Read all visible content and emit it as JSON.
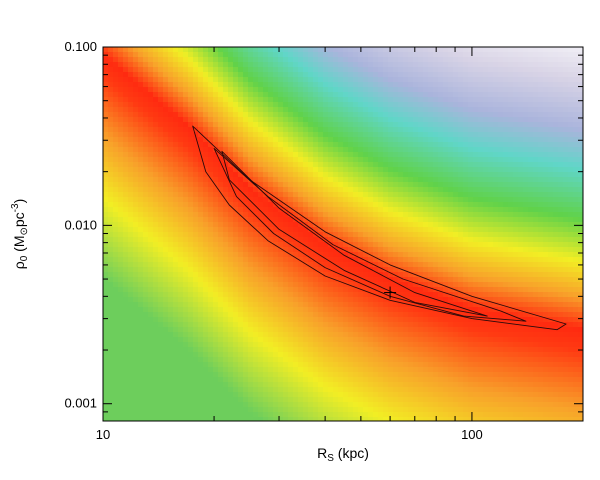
{
  "chart_data": {
    "type": "heatmap",
    "title": "",
    "xlabel": {
      "main": "R",
      "sub": "S",
      "rest": " (kpc)"
    },
    "ylabel": {
      "main": "ρ",
      "sub": "0",
      "open": " (M",
      "sun_sub": "⊙",
      "mid": "pc",
      "sup": "-3",
      "close": ")"
    },
    "x_scale": "log",
    "y_scale": "log",
    "xlim": [
      10,
      200
    ],
    "ylim": [
      0.0008,
      0.1
    ],
    "x_ticks": [
      {
        "value": 10,
        "label": "10"
      },
      {
        "value": 100,
        "label": "100"
      }
    ],
    "y_ticks": [
      {
        "value": 0.001,
        "label": "0.001"
      },
      {
        "value": 0.01,
        "label": "0.010"
      },
      {
        "value": 0.1,
        "label": "0.100"
      }
    ],
    "colormap": [
      "#6dce5c",
      "#f2ee24",
      "#f8a02a",
      "#ff3a12",
      "#ff2a10",
      "#f8a02a",
      "#f2ee24",
      "#60d24a",
      "#60d6c8",
      "#aab4dc",
      "#d9d4e6",
      "#ffffff"
    ],
    "ridge": {
      "description": "best-fit valley of the likelihood surface",
      "points": [
        [
          10,
          0.09
        ],
        [
          17,
          0.036
        ],
        [
          25,
          0.016
        ],
        [
          40,
          0.0078
        ],
        [
          60,
          0.005
        ],
        [
          100,
          0.0034
        ],
        [
          200,
          0.0026
        ]
      ]
    },
    "best_fit": {
      "x": 60,
      "y": 0.0042
    },
    "contours": [
      {
        "name": "inner",
        "points": [
          [
            21,
            0.026
          ],
          [
            30,
            0.0125
          ],
          [
            45,
            0.0068
          ],
          [
            70,
            0.0042
          ],
          [
            110,
            0.0031
          ],
          [
            70,
            0.0037
          ],
          [
            45,
            0.0056
          ],
          [
            30,
            0.0095
          ],
          [
            22,
            0.018
          ],
          [
            21,
            0.026
          ]
        ]
      },
      {
        "name": "outer",
        "points": [
          [
            17.5,
            0.036
          ],
          [
            25,
            0.018
          ],
          [
            40,
            0.0092
          ],
          [
            60,
            0.006
          ],
          [
            100,
            0.004
          ],
          [
            180,
            0.0028
          ],
          [
            170,
            0.0026
          ],
          [
            100,
            0.003
          ],
          [
            60,
            0.0038
          ],
          [
            40,
            0.0052
          ],
          [
            28,
            0.0082
          ],
          [
            22,
            0.013
          ],
          [
            19,
            0.02
          ],
          [
            17.5,
            0.036
          ]
        ]
      },
      {
        "name": "middle",
        "points": [
          [
            20,
            0.027
          ],
          [
            28,
            0.0145
          ],
          [
            42,
            0.0078
          ],
          [
            65,
            0.005
          ],
          [
            120,
            0.0033
          ],
          [
            140,
            0.0029
          ],
          [
            95,
            0.0031
          ],
          [
            60,
            0.004
          ],
          [
            40,
            0.0058
          ],
          [
            29,
            0.009
          ],
          [
            23,
            0.0145
          ],
          [
            20,
            0.027
          ]
        ]
      }
    ]
  }
}
